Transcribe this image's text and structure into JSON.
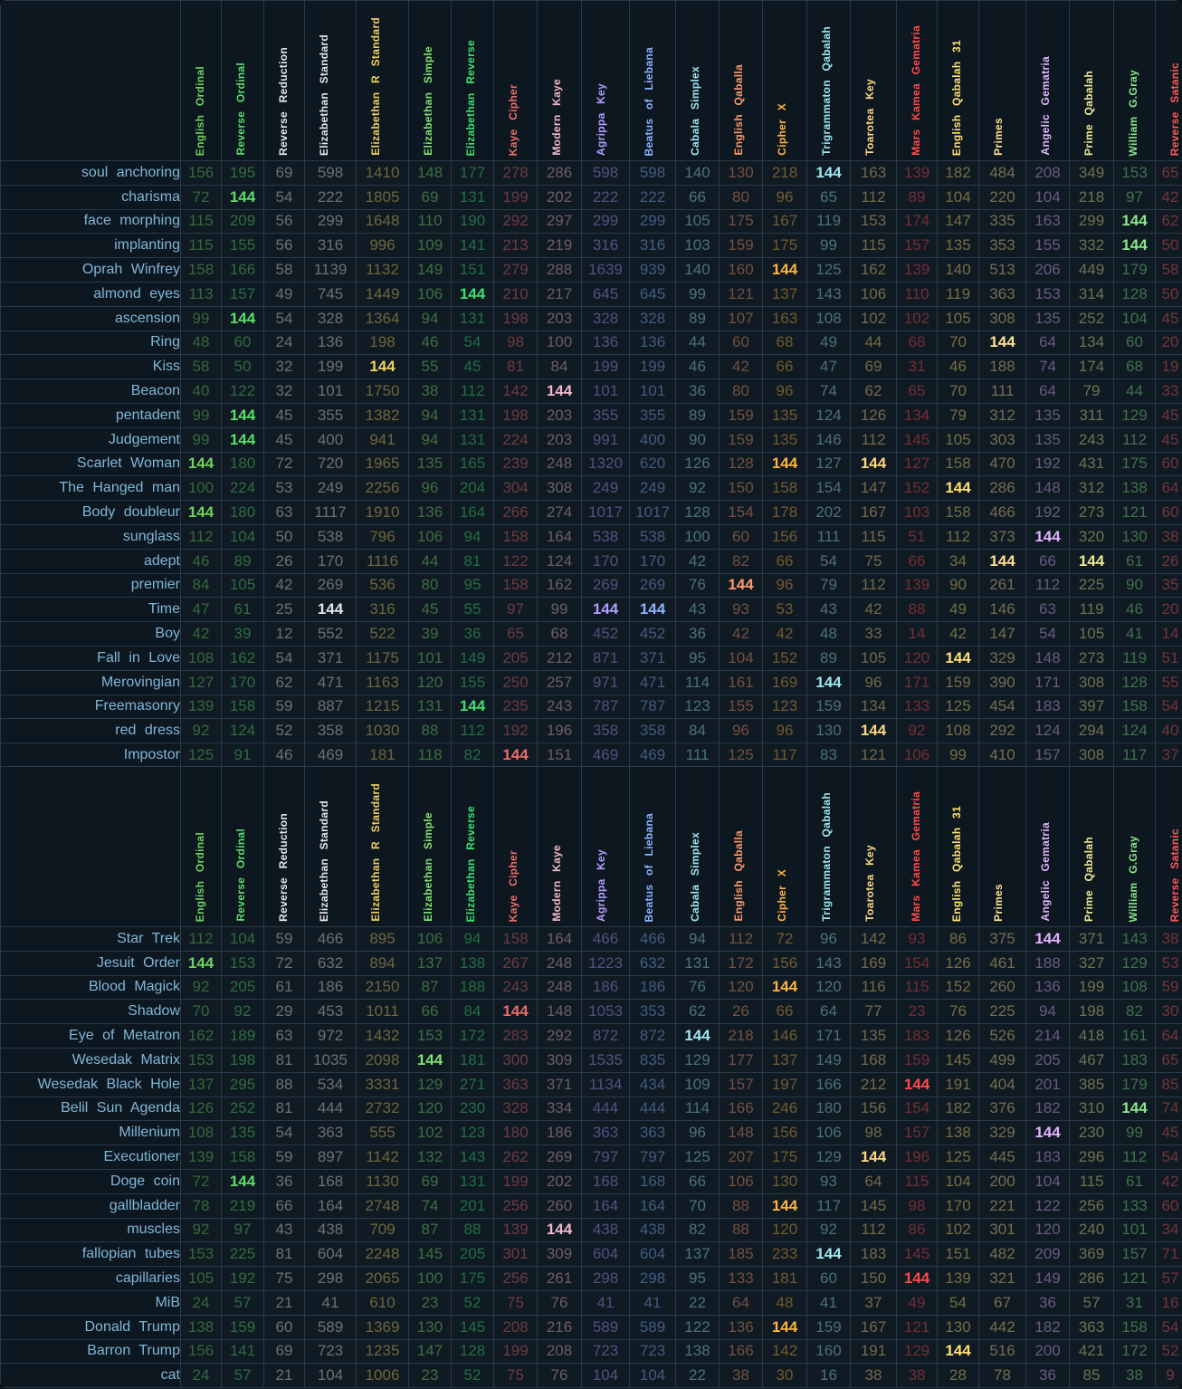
{
  "ciphers": [
    {
      "name": "English Ordinal",
      "color": "#6fd25a"
    },
    {
      "name": "Reverse Ordinal",
      "color": "#5ade6a"
    },
    {
      "name": "Reverse Reduction",
      "color": "#e6e6e6"
    },
    {
      "name": "Elizabethan Standard",
      "color": "#e6e6e6"
    },
    {
      "name": "Elizabethan R Standard",
      "color": "#f0d060"
    },
    {
      "name": "Elizabethan Simple",
      "color": "#82e06e"
    },
    {
      "name": "Elizabethan Reverse",
      "color": "#3ee070"
    },
    {
      "name": "Kaye Cipher",
      "color": "#f06a6a"
    },
    {
      "name": "Modern Kaye",
      "color": "#f0b8c8"
    },
    {
      "name": "Agrippa Key",
      "color": "#b49cff"
    },
    {
      "name": "Beatus of Liebana",
      "color": "#8cb4ff"
    },
    {
      "name": "Cabala Simplex",
      "color": "#9fe6f0"
    },
    {
      "name": "English Qaballa",
      "color": "#ff9a6a"
    },
    {
      "name": "Cipher X",
      "color": "#ffb340"
    },
    {
      "name": "Trigrammaton Qabalah",
      "color": "#9fe6f0"
    },
    {
      "name": "Toarotea Key",
      "color": "#ffd680"
    },
    {
      "name": "Mars Kamea Gematria",
      "color": "#ff4a4a"
    },
    {
      "name": "English Qabalah 31",
      "color": "#ffe070"
    },
    {
      "name": "Primes",
      "color": "#ffe090"
    },
    {
      "name": "Angelic Gematria",
      "color": "#e2b2ff"
    },
    {
      "name": "Prime Qabalah",
      "color": "#f0e890"
    },
    {
      "name": "William G.Gray",
      "color": "#88e888"
    },
    {
      "name": "Reverse Satanic",
      "color": "#ff5a5a"
    }
  ],
  "target": "144",
  "table1": [
    {
      "phrase": "soul anchoring",
      "values": [
        "156",
        "195",
        "69",
        "598",
        "1410",
        "148",
        "177",
        "278",
        "286",
        "598",
        "598",
        "140",
        "130",
        "218",
        "144",
        "163",
        "139",
        "182",
        "484",
        "208",
        "349",
        "153",
        "65"
      ]
    },
    {
      "phrase": "charisma",
      "values": [
        "72",
        "144",
        "54",
        "222",
        "1805",
        "69",
        "131",
        "199",
        "202",
        "222",
        "222",
        "66",
        "80",
        "96",
        "65",
        "112",
        "89",
        "104",
        "220",
        "104",
        "218",
        "97",
        "42"
      ]
    },
    {
      "phrase": "face morphing",
      "values": [
        "115",
        "209",
        "56",
        "299",
        "1648",
        "110",
        "190",
        "292",
        "297",
        "299",
        "299",
        "105",
        "175",
        "167",
        "119",
        "153",
        "174",
        "147",
        "335",
        "163",
        "299",
        "144",
        "62"
      ]
    },
    {
      "phrase": "implanting",
      "values": [
        "115",
        "155",
        "56",
        "316",
        "996",
        "109",
        "141",
        "213",
        "219",
        "316",
        "316",
        "103",
        "159",
        "175",
        "99",
        "115",
        "157",
        "135",
        "353",
        "155",
        "332",
        "144",
        "50"
      ]
    },
    {
      "phrase": "Oprah Winfrey",
      "values": [
        "158",
        "166",
        "58",
        "1139",
        "1132",
        "149",
        "151",
        "279",
        "288",
        "1639",
        "939",
        "140",
        "160",
        "144",
        "125",
        "162",
        "139",
        "140",
        "513",
        "206",
        "449",
        "179",
        "58"
      ]
    },
    {
      "phrase": "almond eyes",
      "values": [
        "113",
        "157",
        "49",
        "745",
        "1449",
        "106",
        "144",
        "210",
        "217",
        "645",
        "645",
        "99",
        "121",
        "137",
        "143",
        "106",
        "110",
        "119",
        "363",
        "153",
        "314",
        "128",
        "50"
      ]
    },
    {
      "phrase": "ascension",
      "values": [
        "99",
        "144",
        "54",
        "328",
        "1364",
        "94",
        "131",
        "198",
        "203",
        "328",
        "328",
        "89",
        "107",
        "163",
        "108",
        "102",
        "102",
        "105",
        "308",
        "135",
        "252",
        "104",
        "45"
      ]
    },
    {
      "phrase": "Ring",
      "values": [
        "48",
        "60",
        "24",
        "136",
        "198",
        "46",
        "54",
        "98",
        "100",
        "136",
        "136",
        "44",
        "60",
        "68",
        "49",
        "44",
        "68",
        "70",
        "144",
        "64",
        "134",
        "60",
        "20"
      ]
    },
    {
      "phrase": "Kiss",
      "values": [
        "58",
        "50",
        "32",
        "199",
        "144",
        "55",
        "45",
        "81",
        "84",
        "199",
        "199",
        "46",
        "42",
        "66",
        "47",
        "69",
        "31",
        "46",
        "188",
        "74",
        "174",
        "68",
        "19"
      ]
    },
    {
      "phrase": "Beacon",
      "values": [
        "40",
        "122",
        "32",
        "101",
        "1750",
        "38",
        "112",
        "142",
        "144",
        "101",
        "101",
        "36",
        "80",
        "96",
        "74",
        "62",
        "65",
        "70",
        "111",
        "64",
        "79",
        "44",
        "33"
      ]
    },
    {
      "phrase": "pentadent",
      "values": [
        "99",
        "144",
        "45",
        "355",
        "1382",
        "94",
        "131",
        "198",
        "203",
        "355",
        "355",
        "89",
        "159",
        "135",
        "124",
        "126",
        "134",
        "79",
        "312",
        "135",
        "311",
        "129",
        "45"
      ]
    },
    {
      "phrase": "Judgement",
      "values": [
        "99",
        "144",
        "45",
        "400",
        "941",
        "94",
        "131",
        "224",
        "203",
        "991",
        "400",
        "90",
        "159",
        "135",
        "146",
        "112",
        "145",
        "105",
        "303",
        "135",
        "243",
        "112",
        "45"
      ]
    },
    {
      "phrase": "Scarlet Woman",
      "values": [
        "144",
        "180",
        "72",
        "720",
        "1965",
        "135",
        "165",
        "239",
        "248",
        "1320",
        "620",
        "126",
        "128",
        "144",
        "127",
        "144",
        "127",
        "158",
        "470",
        "192",
        "431",
        "175",
        "60"
      ]
    },
    {
      "phrase": "The Hanged man",
      "values": [
        "100",
        "224",
        "53",
        "249",
        "2256",
        "96",
        "204",
        "304",
        "308",
        "249",
        "249",
        "92",
        "150",
        "158",
        "154",
        "147",
        "152",
        "144",
        "286",
        "148",
        "312",
        "138",
        "64"
      ]
    },
    {
      "phrase": "Body doubleur",
      "values": [
        "144",
        "180",
        "63",
        "1117",
        "1910",
        "136",
        "164",
        "266",
        "274",
        "1017",
        "1017",
        "128",
        "154",
        "178",
        "202",
        "167",
        "103",
        "158",
        "466",
        "192",
        "273",
        "121",
        "60"
      ]
    },
    {
      "phrase": "sunglass",
      "values": [
        "112",
        "104",
        "50",
        "538",
        "796",
        "106",
        "94",
        "158",
        "164",
        "538",
        "538",
        "100",
        "60",
        "156",
        "111",
        "115",
        "51",
        "112",
        "373",
        "144",
        "320",
        "130",
        "38"
      ]
    },
    {
      "phrase": "adept",
      "values": [
        "46",
        "89",
        "26",
        "170",
        "1116",
        "44",
        "81",
        "122",
        "124",
        "170",
        "170",
        "42",
        "82",
        "66",
        "54",
        "75",
        "66",
        "34",
        "144",
        "66",
        "144",
        "61",
        "26"
      ]
    },
    {
      "phrase": "premier",
      "values": [
        "84",
        "105",
        "42",
        "269",
        "536",
        "80",
        "95",
        "158",
        "162",
        "269",
        "269",
        "76",
        "144",
        "96",
        "79",
        "112",
        "139",
        "90",
        "261",
        "112",
        "225",
        "90",
        "35"
      ]
    },
    {
      "phrase": "Time",
      "values": [
        "47",
        "61",
        "25",
        "144",
        "316",
        "45",
        "55",
        "97",
        "99",
        "144",
        "144",
        "43",
        "93",
        "53",
        "43",
        "42",
        "88",
        "49",
        "146",
        "63",
        "119",
        "46",
        "20"
      ]
    },
    {
      "phrase": "Boy",
      "values": [
        "42",
        "39",
        "12",
        "552",
        "522",
        "39",
        "36",
        "65",
        "68",
        "452",
        "452",
        "36",
        "42",
        "42",
        "48",
        "33",
        "14",
        "42",
        "147",
        "54",
        "105",
        "41",
        "14"
      ]
    },
    {
      "phrase": "Fall in Love",
      "values": [
        "108",
        "162",
        "54",
        "371",
        "1175",
        "101",
        "149",
        "205",
        "212",
        "871",
        "371",
        "95",
        "104",
        "152",
        "89",
        "105",
        "120",
        "144",
        "329",
        "148",
        "273",
        "119",
        "51"
      ]
    },
    {
      "phrase": "Merovingian",
      "values": [
        "127",
        "170",
        "62",
        "471",
        "1163",
        "120",
        "155",
        "250",
        "257",
        "971",
        "471",
        "114",
        "161",
        "169",
        "144",
        "96",
        "171",
        "159",
        "390",
        "171",
        "308",
        "128",
        "55"
      ]
    },
    {
      "phrase": "Freemasonry",
      "values": [
        "139",
        "158",
        "59",
        "887",
        "1215",
        "131",
        "144",
        "235",
        "243",
        "787",
        "787",
        "123",
        "155",
        "123",
        "159",
        "134",
        "133",
        "125",
        "454",
        "183",
        "397",
        "158",
        "54"
      ]
    },
    {
      "phrase": "red dress",
      "values": [
        "92",
        "124",
        "52",
        "358",
        "1030",
        "88",
        "112",
        "192",
        "196",
        "358",
        "358",
        "84",
        "96",
        "96",
        "130",
        "144",
        "92",
        "108",
        "292",
        "124",
        "294",
        "124",
        "40"
      ]
    },
    {
      "phrase": "Impostor",
      "values": [
        "125",
        "91",
        "46",
        "469",
        "181",
        "118",
        "82",
        "144",
        "151",
        "469",
        "469",
        "111",
        "125",
        "117",
        "83",
        "121",
        "106",
        "99",
        "410",
        "157",
        "308",
        "117",
        "37"
      ]
    }
  ],
  "table2": [
    {
      "phrase": "Star Trek",
      "values": [
        "112",
        "104",
        "59",
        "466",
        "895",
        "106",
        "94",
        "158",
        "164",
        "466",
        "466",
        "94",
        "112",
        "72",
        "96",
        "142",
        "93",
        "86",
        "375",
        "144",
        "371",
        "143",
        "38"
      ]
    },
    {
      "phrase": "Jesuit Order",
      "values": [
        "144",
        "153",
        "72",
        "632",
        "894",
        "137",
        "138",
        "267",
        "248",
        "1223",
        "632",
        "131",
        "172",
        "156",
        "143",
        "169",
        "154",
        "126",
        "461",
        "188",
        "327",
        "129",
        "53"
      ]
    },
    {
      "phrase": "Blood Magick",
      "values": [
        "92",
        "205",
        "61",
        "186",
        "2150",
        "87",
        "188",
        "243",
        "248",
        "186",
        "186",
        "76",
        "120",
        "144",
        "120",
        "116",
        "115",
        "152",
        "260",
        "136",
        "199",
        "108",
        "59"
      ]
    },
    {
      "phrase": "Shadow",
      "values": [
        "70",
        "92",
        "29",
        "453",
        "1011",
        "66",
        "84",
        "144",
        "148",
        "1053",
        "353",
        "62",
        "26",
        "66",
        "64",
        "77",
        "23",
        "76",
        "225",
        "94",
        "198",
        "82",
        "30"
      ]
    },
    {
      "phrase": "Eye of Metatron",
      "values": [
        "162",
        "189",
        "63",
        "972",
        "1432",
        "153",
        "172",
        "283",
        "292",
        "872",
        "872",
        "144",
        "218",
        "146",
        "171",
        "135",
        "183",
        "126",
        "526",
        "214",
        "418",
        "161",
        "64"
      ]
    },
    {
      "phrase": "Wesedak Matrix",
      "values": [
        "153",
        "198",
        "81",
        "1035",
        "2098",
        "144",
        "181",
        "300",
        "309",
        "1535",
        "835",
        "129",
        "177",
        "137",
        "149",
        "168",
        "159",
        "145",
        "499",
        "205",
        "467",
        "183",
        "65"
      ]
    },
    {
      "phrase": "Wesedak Black Hole",
      "values": [
        "137",
        "295",
        "88",
        "534",
        "3331",
        "129",
        "271",
        "363",
        "371",
        "1134",
        "434",
        "109",
        "157",
        "197",
        "166",
        "212",
        "144",
        "191",
        "404",
        "201",
        "385",
        "179",
        "85"
      ]
    },
    {
      "phrase": "Belil Sun Agenda",
      "values": [
        "126",
        "252",
        "81",
        "444",
        "2732",
        "120",
        "230",
        "328",
        "334",
        "444",
        "444",
        "114",
        "166",
        "246",
        "180",
        "156",
        "154",
        "182",
        "376",
        "182",
        "310",
        "144",
        "74"
      ]
    },
    {
      "phrase": "Millenium",
      "values": [
        "108",
        "135",
        "54",
        "363",
        "555",
        "102",
        "123",
        "180",
        "186",
        "363",
        "363",
        "96",
        "148",
        "156",
        "106",
        "98",
        "157",
        "138",
        "329",
        "144",
        "230",
        "99",
        "45"
      ]
    },
    {
      "phrase": "Executioner",
      "values": [
        "139",
        "158",
        "59",
        "897",
        "1142",
        "132",
        "143",
        "262",
        "269",
        "797",
        "797",
        "125",
        "207",
        "175",
        "129",
        "144",
        "196",
        "125",
        "445",
        "183",
        "296",
        "112",
        "54"
      ]
    },
    {
      "phrase": "Doge coin",
      "values": [
        "72",
        "144",
        "36",
        "168",
        "1130",
        "69",
        "131",
        "199",
        "202",
        "168",
        "168",
        "66",
        "106",
        "130",
        "93",
        "64",
        "115",
        "104",
        "200",
        "104",
        "115",
        "61",
        "42"
      ]
    },
    {
      "phrase": "gallbladder",
      "values": [
        "78",
        "219",
        "66",
        "164",
        "2748",
        "74",
        "201",
        "256",
        "260",
        "164",
        "164",
        "70",
        "88",
        "144",
        "117",
        "145",
        "98",
        "170",
        "221",
        "122",
        "256",
        "133",
        "60"
      ]
    },
    {
      "phrase": "muscles",
      "values": [
        "92",
        "97",
        "43",
        "438",
        "709",
        "87",
        "88",
        "139",
        "144",
        "438",
        "438",
        "82",
        "88",
        "120",
        "92",
        "112",
        "86",
        "102",
        "301",
        "120",
        "240",
        "101",
        "34"
      ]
    },
    {
      "phrase": "fallopian tubes",
      "values": [
        "153",
        "225",
        "81",
        "604",
        "2248",
        "145",
        "205",
        "301",
        "309",
        "604",
        "604",
        "137",
        "185",
        "233",
        "144",
        "183",
        "145",
        "151",
        "482",
        "209",
        "369",
        "157",
        "71"
      ]
    },
    {
      "phrase": "capillaries",
      "values": [
        "105",
        "192",
        "75",
        "298",
        "2065",
        "100",
        "175",
        "256",
        "261",
        "298",
        "298",
        "95",
        "133",
        "181",
        "60",
        "150",
        "144",
        "139",
        "321",
        "149",
        "286",
        "121",
        "57"
      ]
    },
    {
      "phrase": "MiB",
      "values": [
        "24",
        "57",
        "21",
        "41",
        "610",
        "23",
        "52",
        "75",
        "76",
        "41",
        "41",
        "22",
        "64",
        "48",
        "41",
        "37",
        "49",
        "54",
        "67",
        "36",
        "57",
        "31",
        "16"
      ]
    },
    {
      "phrase": "Donald Trump",
      "values": [
        "138",
        "159",
        "60",
        "589",
        "1369",
        "130",
        "145",
        "208",
        "216",
        "589",
        "589",
        "122",
        "136",
        "144",
        "159",
        "167",
        "121",
        "130",
        "442",
        "182",
        "363",
        "158",
        "54"
      ]
    },
    {
      "phrase": "Barron Trump",
      "values": [
        "156",
        "141",
        "69",
        "723",
        "1235",
        "147",
        "128",
        "199",
        "208",
        "723",
        "723",
        "138",
        "166",
        "142",
        "160",
        "191",
        "129",
        "144",
        "516",
        "200",
        "421",
        "172",
        "52"
      ]
    },
    {
      "phrase": "cat",
      "values": [
        "24",
        "57",
        "21",
        "104",
        "1006",
        "23",
        "52",
        "75",
        "76",
        "104",
        "104",
        "22",
        "38",
        "30",
        "16",
        "38",
        "38",
        "28",
        "78",
        "36",
        "85",
        "38",
        "9"
      ]
    }
  ]
}
